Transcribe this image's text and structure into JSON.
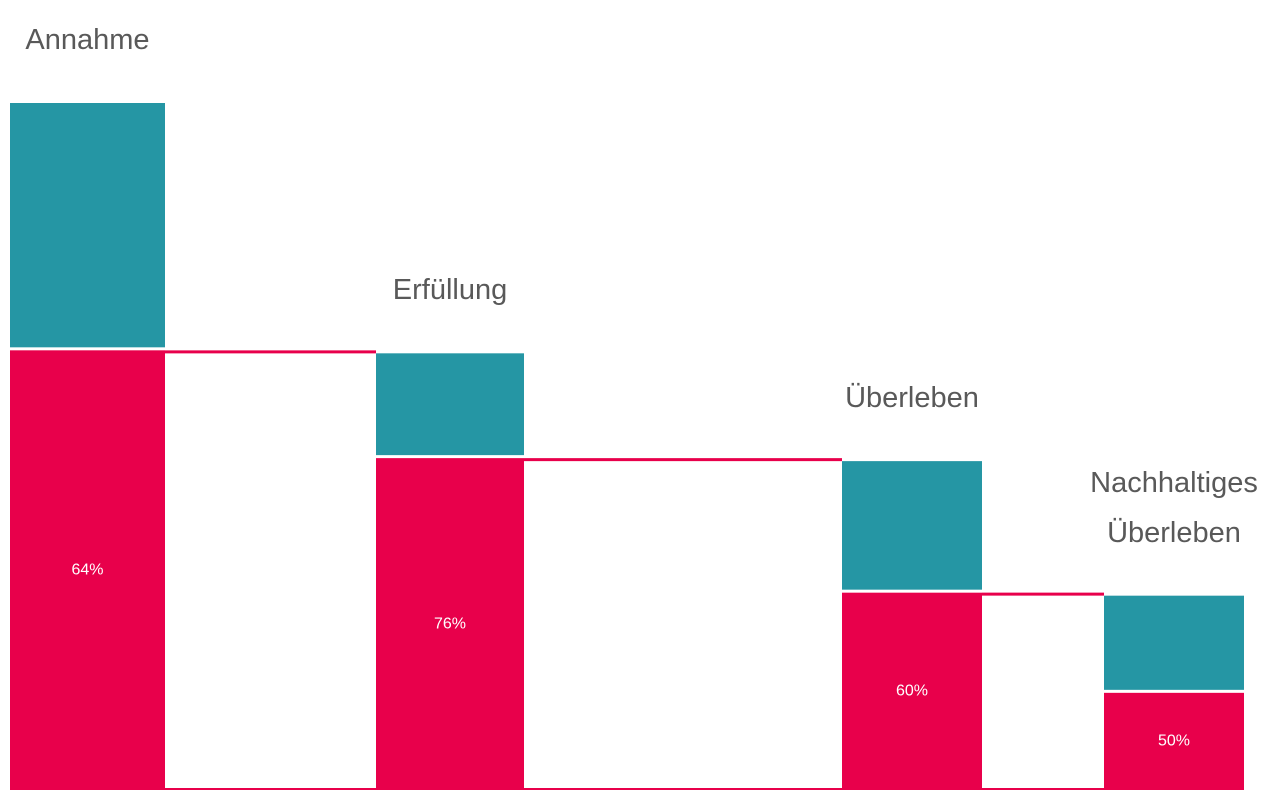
{
  "chart_data": {
    "type": "funnel-bar",
    "categories": [
      "Annahme",
      "Erfüllung",
      "Überleben",
      "Nachhaltiges Überleben"
    ],
    "values": [
      64,
      76,
      60,
      50
    ],
    "value_labels": [
      "64%",
      "76%",
      "60%",
      "50%"
    ],
    "colors": {
      "part": "#e8004b",
      "rest": "#2596a4"
    }
  }
}
